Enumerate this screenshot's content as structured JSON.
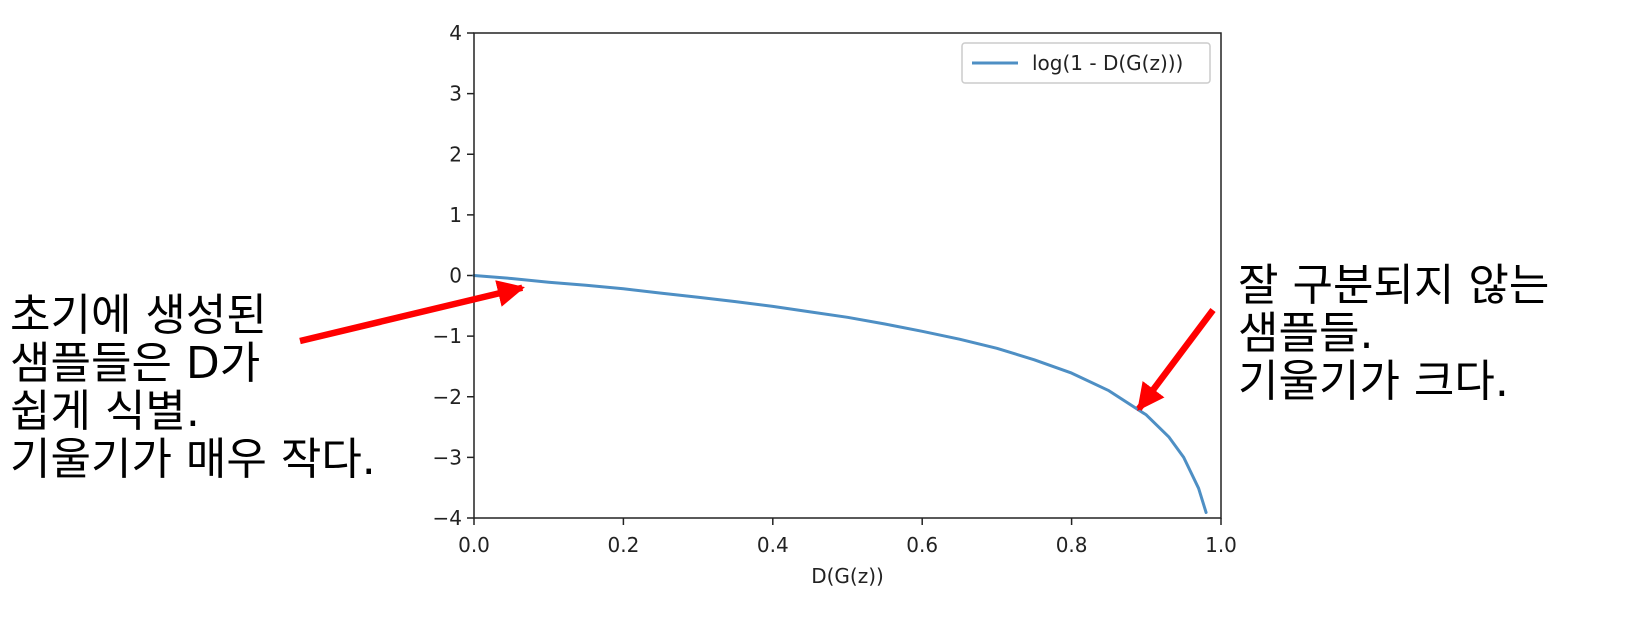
{
  "chart_data": {
    "type": "line",
    "xlabel": "D(G(z))",
    "ylabel": "",
    "xlim": [
      0.0,
      1.0
    ],
    "ylim": [
      -4,
      4
    ],
    "x_ticks": [
      0.0,
      0.2,
      0.4,
      0.6,
      0.8,
      1.0
    ],
    "x_tick_labels": [
      "0.0",
      "0.2",
      "0.4",
      "0.6",
      "0.8",
      "1.0"
    ],
    "y_ticks": [
      4,
      3,
      2,
      1,
      0,
      -1,
      -2,
      -3,
      -4
    ],
    "y_tick_labels": [
      "4",
      "3",
      "2",
      "1",
      "0",
      "−1",
      "−2",
      "−3",
      "−4"
    ],
    "grid": false,
    "legend_position": "top-right",
    "series": [
      {
        "name": "log(1 - D(G(z)))",
        "color": "#4e8fc4",
        "x": [
          0.0,
          0.05,
          0.1,
          0.15,
          0.2,
          0.25,
          0.3,
          0.35,
          0.4,
          0.45,
          0.5,
          0.55,
          0.6,
          0.65,
          0.7,
          0.75,
          0.8,
          0.85,
          0.9,
          0.93,
          0.95,
          0.97,
          0.98
        ],
        "y": [
          0.0,
          -0.05,
          -0.11,
          -0.16,
          -0.22,
          -0.29,
          -0.36,
          -0.43,
          -0.51,
          -0.6,
          -0.69,
          -0.8,
          -0.92,
          -1.05,
          -1.2,
          -1.39,
          -1.61,
          -1.9,
          -2.3,
          -2.66,
          -3.0,
          -3.51,
          -3.91
        ]
      }
    ],
    "annotations": [
      {
        "lines": [
          "초기에 생성된",
          "샘플들은 D가",
          "쉽게 식별.",
          "기울기가 매우 작다."
        ],
        "arrow_color": "#ff0000",
        "points_to": {
          "x": 0.07,
          "y": -0.07
        }
      },
      {
        "lines": [
          "잘 구분되지 않는",
          "샘플들.",
          "기울기가 크다."
        ],
        "arrow_color": "#ff0000",
        "points_to": {
          "x": 0.89,
          "y": -2.2
        }
      }
    ]
  }
}
